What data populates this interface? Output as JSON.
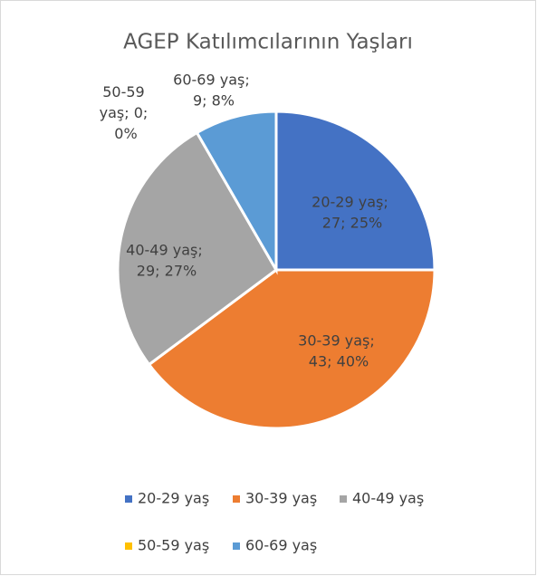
{
  "chart_data": {
    "type": "pie",
    "title": "AGEP Katılımcılarının Yaşları",
    "categories": [
      "20-29 yaş",
      "30-39 yaş",
      "40-49 yaş",
      "50-59 yaş",
      "60-69 yaş"
    ],
    "values": [
      27,
      43,
      29,
      0,
      9
    ],
    "value_labels": [
      "20-29 yaş; 27; 25%",
      "30-39 yaş; 43; 40%",
      "40-49 yaş; 29; 27%",
      "50-59 yaş; 0; 0%",
      "60-69 yaş; 9; 8%"
    ],
    "colors": [
      "#4472c4",
      "#ed7d31",
      "#a5a5a5",
      "#ffc000",
      "#5b9bd5"
    ],
    "legend": "bottom"
  }
}
